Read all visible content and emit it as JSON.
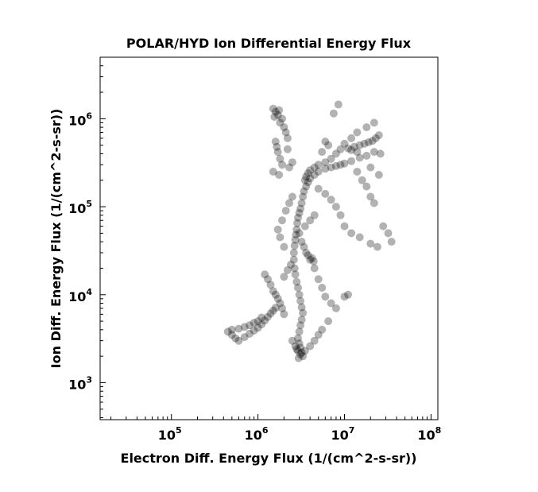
{
  "chart_data": {
    "type": "scatter",
    "title": "POLAR/HYD  Ion Differential Energy Flux",
    "xlabel": "Electron Diff. Energy Flux (1/(cm^2-s-sr))",
    "ylabel": "Ion Diff. Energy Flux (1/(cm^2-s-sr))",
    "xscale": "log",
    "yscale": "log",
    "xlim": [
      15000,
      120000000
    ],
    "ylim": [
      380,
      5000000
    ],
    "xticks": [
      {
        "base": "10",
        "exp": "5",
        "value": 100000
      },
      {
        "base": "10",
        "exp": "6",
        "value": 1000000
      },
      {
        "base": "10",
        "exp": "7",
        "value": 10000000
      },
      {
        "base": "10",
        "exp": "8",
        "value": 100000000
      }
    ],
    "yticks": [
      {
        "base": "10",
        "exp": "3",
        "value": 1000
      },
      {
        "base": "10",
        "exp": "4",
        "value": 10000
      },
      {
        "base": "10",
        "exp": "5",
        "value": 100000
      },
      {
        "base": "10",
        "exp": "6",
        "value": 1000000
      }
    ],
    "grid": false,
    "marker_color": "#000000",
    "marker_alpha": 0.3,
    "points": [
      [
        1500000,
        1300000
      ],
      [
        1700000,
        1100000
      ],
      [
        1800000,
        900000
      ],
      [
        1600000,
        1200000
      ],
      [
        2000000,
        800000
      ],
      [
        1550000,
        1050000
      ],
      [
        1750000,
        1250000
      ],
      [
        1900000,
        1000000
      ],
      [
        2100000,
        700000
      ],
      [
        2200000,
        600000
      ],
      [
        1600000,
        550000
      ],
      [
        1650000,
        480000
      ],
      [
        1700000,
        420000
      ],
      [
        1800000,
        350000
      ],
      [
        1900000,
        300000
      ],
      [
        1500000,
        250000
      ],
      [
        1750000,
        230000
      ],
      [
        2300000,
        280000
      ],
      [
        2500000,
        320000
      ],
      [
        2200000,
        450000
      ],
      [
        8500000,
        1450000
      ],
      [
        7500000,
        1150000
      ],
      [
        6000000,
        550000
      ],
      [
        6500000,
        500000
      ],
      [
        5500000,
        420000
      ],
      [
        22000000,
        900000
      ],
      [
        18000000,
        800000
      ],
      [
        14000000,
        700000
      ],
      [
        12000000,
        600000
      ],
      [
        10000000,
        520000
      ],
      [
        9000000,
        450000
      ],
      [
        8000000,
        400000
      ],
      [
        7000000,
        350000
      ],
      [
        6000000,
        320000
      ],
      [
        5000000,
        300000
      ],
      [
        4500000,
        280000
      ],
      [
        4000000,
        260000
      ],
      [
        3800000,
        240000
      ],
      [
        3600000,
        220000
      ],
      [
        3500000,
        200000
      ],
      [
        26000000,
        400000
      ],
      [
        22000000,
        420000
      ],
      [
        18000000,
        380000
      ],
      [
        15000000,
        360000
      ],
      [
        12000000,
        330000
      ],
      [
        10000000,
        310000
      ],
      [
        9000000,
        300000
      ],
      [
        8000000,
        290000
      ],
      [
        7000000,
        280000
      ],
      [
        6000000,
        270000
      ],
      [
        5000000,
        250000
      ],
      [
        4500000,
        230000
      ],
      [
        4000000,
        210000
      ],
      [
        3800000,
        190000
      ],
      [
        3600000,
        170000
      ],
      [
        3400000,
        150000
      ],
      [
        3300000,
        130000
      ],
      [
        3200000,
        110000
      ],
      [
        3100000,
        95000
      ],
      [
        3000000,
        85000
      ],
      [
        2900000,
        75000
      ],
      [
        2850000,
        65000
      ],
      [
        2800000,
        55000
      ],
      [
        2750000,
        48000
      ],
      [
        2700000,
        42000
      ],
      [
        2650000,
        36000
      ],
      [
        2600000,
        30000
      ],
      [
        2600000,
        25000
      ],
      [
        2650000,
        20000
      ],
      [
        2700000,
        17000
      ],
      [
        2800000,
        14000
      ],
      [
        2900000,
        12000
      ],
      [
        3000000,
        10000
      ],
      [
        3100000,
        8500
      ],
      [
        3200000,
        7200
      ],
      [
        3300000,
        6200
      ],
      [
        3200000,
        5200
      ],
      [
        3100000,
        4500
      ],
      [
        3000000,
        3800
      ],
      [
        2900000,
        3200
      ],
      [
        3000000,
        2800
      ],
      [
        3100000,
        2500
      ],
      [
        3200000,
        2200
      ],
      [
        2950000,
        1900
      ],
      [
        2800000,
        2400
      ],
      [
        14000000,
        250000
      ],
      [
        16000000,
        200000
      ],
      [
        18000000,
        170000
      ],
      [
        20000000,
        130000
      ],
      [
        22000000,
        110000
      ],
      [
        25000000,
        230000
      ],
      [
        20000000,
        280000
      ],
      [
        32000000,
        50000
      ],
      [
        35000000,
        40000
      ],
      [
        28000000,
        60000
      ],
      [
        24000000,
        35000
      ],
      [
        20000000,
        38000
      ],
      [
        15000000,
        45000
      ],
      [
        12000000,
        50000
      ],
      [
        10000000,
        60000
      ],
      [
        9000000,
        80000
      ],
      [
        8000000,
        100000
      ],
      [
        7000000,
        120000
      ],
      [
        6000000,
        140000
      ],
      [
        5000000,
        160000
      ],
      [
        1200000,
        17000
      ],
      [
        1300000,
        15000
      ],
      [
        1400000,
        13000
      ],
      [
        1500000,
        11000
      ],
      [
        1600000,
        10000
      ],
      [
        1700000,
        9000
      ],
      [
        1800000,
        8000
      ],
      [
        1900000,
        7000
      ],
      [
        2000000,
        6000
      ],
      [
        1100000,
        5500
      ],
      [
        1000000,
        5000
      ],
      [
        900000,
        4800
      ],
      [
        800000,
        4500
      ],
      [
        700000,
        4300
      ],
      [
        600000,
        4100
      ],
      [
        500000,
        4000
      ],
      [
        450000,
        3800
      ],
      [
        500000,
        3500
      ],
      [
        550000,
        3200
      ],
      [
        600000,
        3000
      ],
      [
        700000,
        3300
      ],
      [
        800000,
        3600
      ],
      [
        900000,
        3900
      ],
      [
        1000000,
        4200
      ],
      [
        1100000,
        4600
      ],
      [
        1200000,
        5100
      ],
      [
        1300000,
        5600
      ],
      [
        1400000,
        6100
      ],
      [
        1500000,
        6600
      ],
      [
        1600000,
        7100
      ],
      [
        2000000,
        16000
      ],
      [
        2200000,
        19000
      ],
      [
        2400000,
        22000
      ],
      [
        2000000,
        35000
      ],
      [
        1800000,
        45000
      ],
      [
        1700000,
        55000
      ],
      [
        1900000,
        70000
      ],
      [
        2100000,
        90000
      ],
      [
        2300000,
        110000
      ],
      [
        2500000,
        130000
      ],
      [
        4000000,
        25000
      ],
      [
        4500000,
        20000
      ],
      [
        5000000,
        15000
      ],
      [
        5500000,
        12000
      ],
      [
        6000000,
        9500
      ],
      [
        7000000,
        8000
      ],
      [
        8000000,
        7000
      ],
      [
        10000000,
        9500
      ],
      [
        11000000,
        10000
      ],
      [
        6500000,
        5000
      ],
      [
        5500000,
        4000
      ],
      [
        5000000,
        3500
      ],
      [
        4500000,
        3000
      ],
      [
        4000000,
        2600
      ],
      [
        3500000,
        2300
      ],
      [
        3300000,
        2000
      ],
      [
        3100000,
        2100
      ],
      [
        2900000,
        2300
      ],
      [
        2700000,
        2600
      ],
      [
        2500000,
        3000
      ],
      [
        3000000,
        50000
      ],
      [
        3500000,
        60000
      ],
      [
        4000000,
        70000
      ],
      [
        4500000,
        80000
      ],
      [
        3200000,
        40000
      ],
      [
        3400000,
        35000
      ],
      [
        3600000,
        30000
      ],
      [
        3800000,
        28000
      ],
      [
        4200000,
        26000
      ],
      [
        4400000,
        24000
      ],
      [
        14000000,
        420000
      ],
      [
        12000000,
        440000
      ],
      [
        11000000,
        460000
      ],
      [
        13000000,
        480000
      ],
      [
        15000000,
        500000
      ],
      [
        17000000,
        520000
      ],
      [
        19000000,
        540000
      ],
      [
        21000000,
        560000
      ],
      [
        23000000,
        600000
      ],
      [
        25000000,
        650000
      ]
    ]
  }
}
